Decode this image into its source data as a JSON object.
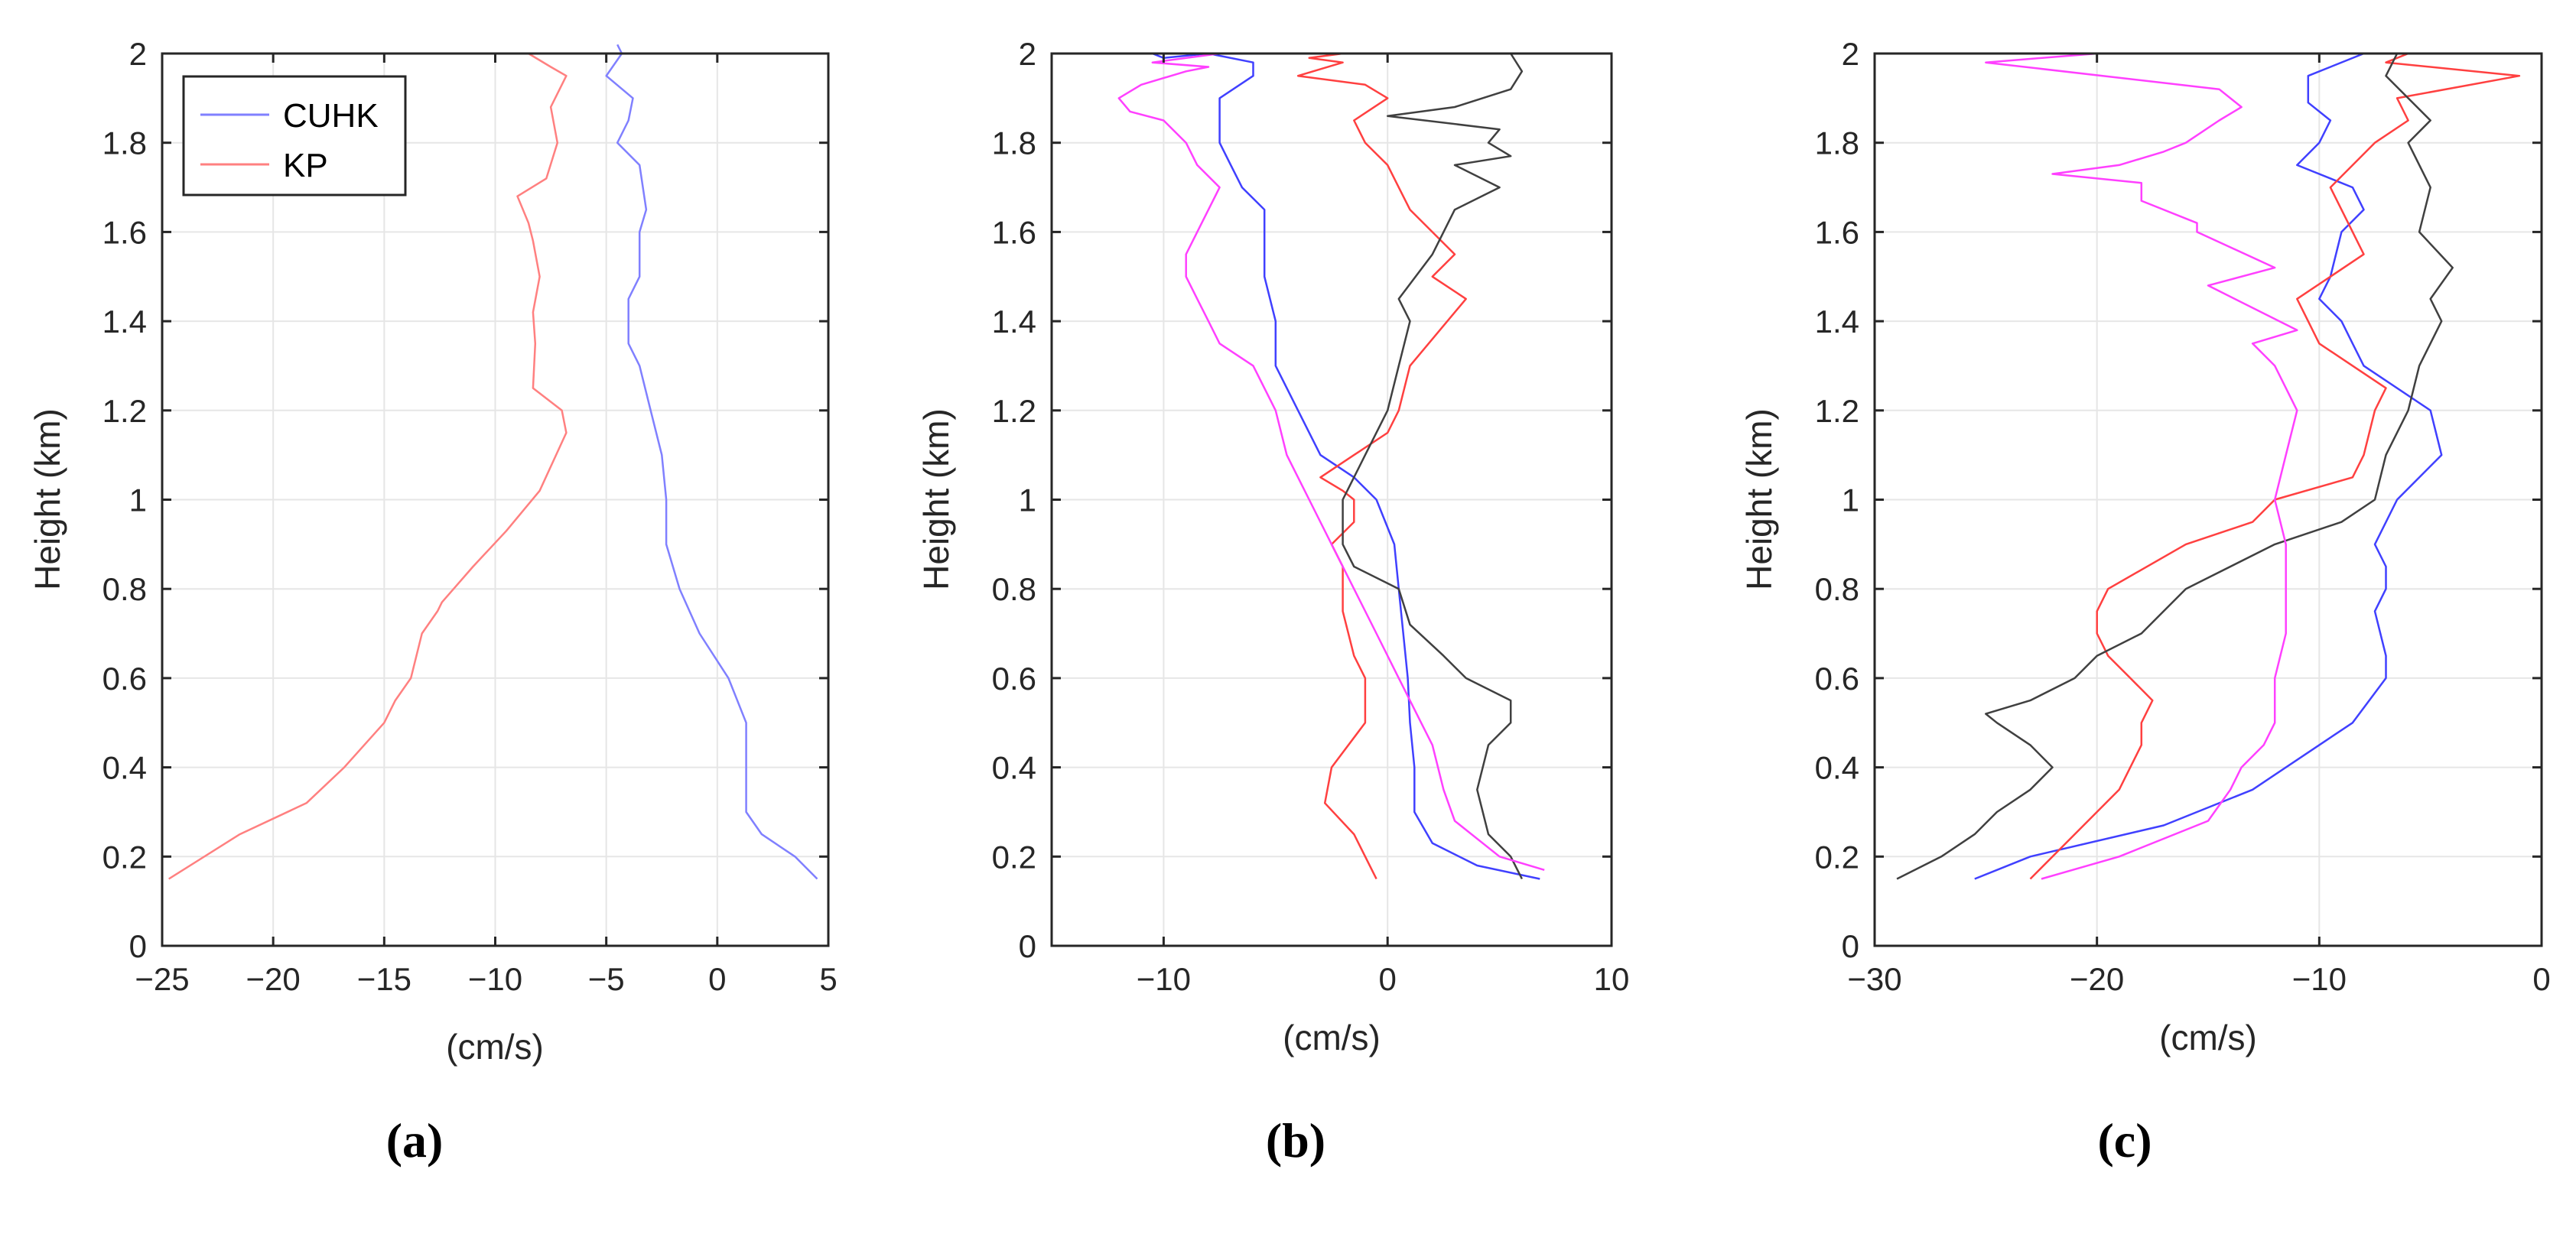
{
  "chart_data": [
    {
      "type": "line",
      "panel": "a",
      "caption": "(a)",
      "xlabel": "(cm/s)",
      "ylabel": "Height (km)",
      "xlim": [
        -25,
        5
      ],
      "ylim": [
        0,
        2
      ],
      "xticks": [
        -25,
        -20,
        -15,
        -10,
        -5,
        0,
        5
      ],
      "yticks": [
        0,
        0.2,
        0.4,
        0.6,
        0.8,
        1,
        1.2,
        1.4,
        1.6,
        1.8,
        2
      ],
      "ytick_labels": [
        "0",
        "0.2",
        "0.4",
        "0.6",
        "0.8",
        "1",
        "1.2",
        "1.4",
        "1.6",
        "1.8",
        "2"
      ],
      "grid": true,
      "legend": {
        "position": "top-left",
        "entries": [
          "CUHK",
          "KP"
        ]
      },
      "series": [
        {
          "name": "CUHK",
          "color": "#8080ff",
          "x": [
            4.5,
            3.5,
            2.0,
            1.3,
            1.3,
            1.3,
            1.3,
            0.5,
            -0.8,
            -1.7,
            -2.3,
            -2.3,
            -2.5,
            -3.0,
            -3.5,
            -4.0,
            -4.0,
            -4.0,
            -3.5,
            -3.5,
            -3.2,
            -3.5,
            -4.5,
            -4.0,
            -3.8,
            -5.0,
            -4.3,
            -4.5
          ],
          "y": [
            0.15,
            0.2,
            0.25,
            0.3,
            0.4,
            0.45,
            0.5,
            0.6,
            0.7,
            0.8,
            0.9,
            1.0,
            1.1,
            1.2,
            1.3,
            1.35,
            1.4,
            1.45,
            1.5,
            1.6,
            1.65,
            1.75,
            1.8,
            1.85,
            1.9,
            1.95,
            2.0,
            2.02
          ]
        },
        {
          "name": "KP",
          "color": "#ff8080",
          "x": [
            -24.7,
            -21.5,
            -18.5,
            -16.8,
            -15.0,
            -14.5,
            -13.8,
            -13.3,
            -12.6,
            -12.4,
            -11.0,
            -9.5,
            -8.0,
            -6.8,
            -7.0,
            -8.3,
            -8.2,
            -8.3,
            -8.0,
            -8.3,
            -8.5,
            -9.0,
            -7.7,
            -7.2,
            -7.5,
            -6.8,
            -7.5,
            -8.5
          ],
          "y": [
            0.15,
            0.25,
            0.32,
            0.4,
            0.5,
            0.55,
            0.6,
            0.7,
            0.75,
            0.77,
            0.85,
            0.93,
            1.02,
            1.15,
            1.2,
            1.25,
            1.35,
            1.42,
            1.5,
            1.58,
            1.62,
            1.68,
            1.72,
            1.8,
            1.88,
            1.95,
            1.97,
            2.0
          ]
        }
      ]
    },
    {
      "type": "line",
      "panel": "b",
      "caption": "(b)",
      "xlabel": "(cm/s)",
      "ylabel": "Height (km)",
      "xlim": [
        -15,
        10
      ],
      "ylim": [
        0,
        2
      ],
      "xticks": [
        -10,
        0,
        10
      ],
      "yticks": [
        0,
        0.2,
        0.4,
        0.6,
        0.8,
        1,
        1.2,
        1.4,
        1.6,
        1.8,
        2
      ],
      "ytick_labels": [
        "0",
        "0.2",
        "0.4",
        "0.6",
        "0.8",
        "1",
        "1.2",
        "1.4",
        "1.6",
        "1.8",
        "2"
      ],
      "grid": true,
      "series": [
        {
          "name": "blue",
          "color": "#4040ff",
          "x": [
            6.8,
            4.0,
            2.0,
            1.2,
            1.2,
            1.0,
            0.9,
            0.7,
            0.5,
            0.3,
            -0.5,
            -1.5,
            -3.0,
            -4.0,
            -5.0,
            -5.0,
            -5.5,
            -5.5,
            -5.5,
            -6.5,
            -7.0,
            -7.5,
            -7.5,
            -7.5,
            -6.0,
            -6.0,
            -8.0,
            -10.0,
            -10.5
          ],
          "y": [
            0.15,
            0.18,
            0.23,
            0.3,
            0.4,
            0.5,
            0.6,
            0.7,
            0.8,
            0.9,
            1.0,
            1.05,
            1.1,
            1.2,
            1.3,
            1.4,
            1.5,
            1.6,
            1.65,
            1.7,
            1.75,
            1.8,
            1.85,
            1.9,
            1.95,
            1.98,
            2.0,
            1.99,
            2.0
          ]
        },
        {
          "name": "red",
          "color": "#ff4040",
          "x": [
            -0.5,
            -1.5,
            -2.8,
            -2.5,
            -1.0,
            -1.0,
            -1.5,
            -2.0,
            -2.0,
            -2.5,
            -1.5,
            -1.5,
            -2.0,
            -3.0,
            -1.5,
            0.0,
            0.5,
            1.0,
            3.5,
            2.0,
            3.0,
            1.0,
            0.5,
            0.0,
            -1.0,
            -1.5,
            0.0,
            -1.0,
            -4.0,
            -2.0,
            -3.5,
            -2.0
          ],
          "y": [
            0.15,
            0.25,
            0.32,
            0.4,
            0.5,
            0.6,
            0.65,
            0.75,
            0.85,
            0.9,
            0.95,
            1.0,
            1.02,
            1.05,
            1.1,
            1.15,
            1.2,
            1.3,
            1.45,
            1.5,
            1.55,
            1.65,
            1.7,
            1.75,
            1.8,
            1.85,
            1.9,
            1.93,
            1.95,
            1.98,
            1.99,
            2.0
          ]
        },
        {
          "name": "black",
          "color": "#404040",
          "x": [
            6.0,
            5.5,
            4.5,
            4.0,
            4.5,
            5.5,
            5.5,
            3.5,
            2.5,
            1.0,
            0.5,
            -1.5,
            -2.0,
            -2.0,
            -1.0,
            0.0,
            0.5,
            1.0,
            0.5,
            2.0,
            2.5,
            3.0,
            5.0,
            3.0,
            5.5,
            4.5,
            5.0,
            0.0,
            3.0,
            5.5,
            6.0,
            5.5
          ],
          "y": [
            0.15,
            0.2,
            0.25,
            0.35,
            0.45,
            0.5,
            0.55,
            0.6,
            0.65,
            0.72,
            0.8,
            0.85,
            0.9,
            1.0,
            1.1,
            1.2,
            1.3,
            1.4,
            1.45,
            1.55,
            1.6,
            1.65,
            1.7,
            1.75,
            1.77,
            1.8,
            1.83,
            1.86,
            1.88,
            1.92,
            1.96,
            2.0
          ]
        },
        {
          "name": "magenta",
          "color": "#ff40ff",
          "x": [
            7.0,
            5.0,
            3.0,
            2.5,
            2.0,
            1.5,
            0.5,
            -0.5,
            -1.5,
            -2.5,
            -3.5,
            -4.5,
            -5.0,
            -6.0,
            -7.5,
            -8.0,
            -8.5,
            -9.0,
            -9.0,
            -8.5,
            -8.0,
            -7.5,
            -8.5,
            -9.0,
            -10.0,
            -11.5,
            -12.0,
            -11.0,
            -9.0,
            -8.0,
            -10.5,
            -7.5
          ],
          "y": [
            0.17,
            0.2,
            0.28,
            0.35,
            0.45,
            0.5,
            0.6,
            0.7,
            0.8,
            0.9,
            1.0,
            1.1,
            1.2,
            1.3,
            1.35,
            1.4,
            1.45,
            1.5,
            1.55,
            1.6,
            1.65,
            1.7,
            1.75,
            1.8,
            1.85,
            1.87,
            1.9,
            1.93,
            1.96,
            1.97,
            1.98,
            2.0
          ]
        }
      ]
    },
    {
      "type": "line",
      "panel": "c",
      "caption": "(c)",
      "xlabel": "(cm/s)",
      "ylabel": "Height (km)",
      "xlim": [
        -30,
        0
      ],
      "ylim": [
        0,
        2
      ],
      "xticks": [
        -30,
        -20,
        -10,
        0
      ],
      "yticks": [
        0,
        0.2,
        0.4,
        0.6,
        0.8,
        1,
        1.2,
        1.4,
        1.6,
        1.8,
        2
      ],
      "ytick_labels": [
        "0",
        "0.2",
        "0.4",
        "0.6",
        "0.8",
        "1",
        "1.2",
        "1.4",
        "1.6",
        "1.8",
        "2"
      ],
      "grid": true,
      "series": [
        {
          "name": "blue",
          "color": "#4040ff",
          "x": [
            -25.5,
            -23.0,
            -17.0,
            -13.0,
            -10.0,
            -8.5,
            -7.0,
            -7.0,
            -7.5,
            -7.0,
            -7.0,
            -7.5,
            -6.5,
            -4.5,
            -5.0,
            -8.0,
            -8.5,
            -9.0,
            -10.0,
            -9.5,
            -9.0,
            -8.0,
            -8.5,
            -11.0,
            -10.0,
            -9.5,
            -10.5,
            -10.5,
            -8.0
          ],
          "y": [
            0.15,
            0.2,
            0.27,
            0.35,
            0.45,
            0.5,
            0.6,
            0.65,
            0.75,
            0.8,
            0.85,
            0.9,
            1.0,
            1.1,
            1.2,
            1.3,
            1.35,
            1.4,
            1.45,
            1.5,
            1.6,
            1.65,
            1.7,
            1.75,
            1.8,
            1.85,
            1.89,
            1.95,
            2.0
          ]
        },
        {
          "name": "red",
          "color": "#ff4040",
          "x": [
            -23.0,
            -21.0,
            -19.0,
            -18.0,
            -18.0,
            -17.5,
            -18.5,
            -19.5,
            -20.0,
            -20.0,
            -19.5,
            -16.0,
            -13.0,
            -12.0,
            -8.5,
            -8.0,
            -7.5,
            -7.0,
            -8.5,
            -10.0,
            -10.5,
            -11.0,
            -9.5,
            -8.0,
            -9.0,
            -9.5,
            -7.5,
            -6.0,
            -6.5,
            -1.0,
            -7.0,
            -6.0
          ],
          "y": [
            0.15,
            0.25,
            0.35,
            0.45,
            0.5,
            0.55,
            0.6,
            0.65,
            0.7,
            0.75,
            0.8,
            0.9,
            0.95,
            1.0,
            1.05,
            1.1,
            1.2,
            1.25,
            1.3,
            1.35,
            1.4,
            1.45,
            1.5,
            1.55,
            1.65,
            1.7,
            1.8,
            1.85,
            1.9,
            1.95,
            1.98,
            2.0
          ]
        },
        {
          "name": "black",
          "color": "#404040",
          "x": [
            -29.0,
            -27.0,
            -25.5,
            -24.5,
            -23.0,
            -22.0,
            -23.0,
            -24.5,
            -25.0,
            -23.0,
            -21.0,
            -20.0,
            -18.0,
            -16.0,
            -12.0,
            -9.0,
            -7.5,
            -7.0,
            -6.0,
            -5.5,
            -4.5,
            -5.0,
            -4.0,
            -5.5,
            -5.0,
            -6.0,
            -5.0,
            -6.0,
            -7.0,
            -6.5
          ],
          "y": [
            0.15,
            0.2,
            0.25,
            0.3,
            0.35,
            0.4,
            0.45,
            0.5,
            0.52,
            0.55,
            0.6,
            0.65,
            0.7,
            0.8,
            0.9,
            0.95,
            1.0,
            1.1,
            1.2,
            1.3,
            1.4,
            1.45,
            1.52,
            1.6,
            1.7,
            1.8,
            1.85,
            1.9,
            1.95,
            2.0
          ]
        },
        {
          "name": "magenta",
          "color": "#ff40ff",
          "x": [
            -22.5,
            -19.0,
            -15.0,
            -14.0,
            -13.5,
            -12.5,
            -12.0,
            -12.0,
            -11.5,
            -11.5,
            -11.5,
            -12.0,
            -11.5,
            -11.0,
            -12.0,
            -13.0,
            -11.0,
            -15.0,
            -12.0,
            -15.5,
            -15.5,
            -18.0,
            -18.0,
            -20.0,
            -22.0,
            -19.0,
            -17.0,
            -16.0,
            -14.5,
            -13.5,
            -14.5,
            -25.0,
            -20.0
          ],
          "y": [
            0.15,
            0.2,
            0.28,
            0.35,
            0.4,
            0.45,
            0.5,
            0.6,
            0.7,
            0.8,
            0.9,
            1.0,
            1.1,
            1.2,
            1.3,
            1.35,
            1.38,
            1.48,
            1.52,
            1.6,
            1.62,
            1.67,
            1.71,
            1.72,
            1.73,
            1.75,
            1.78,
            1.8,
            1.85,
            1.88,
            1.92,
            1.98,
            2.0
          ]
        }
      ]
    }
  ]
}
